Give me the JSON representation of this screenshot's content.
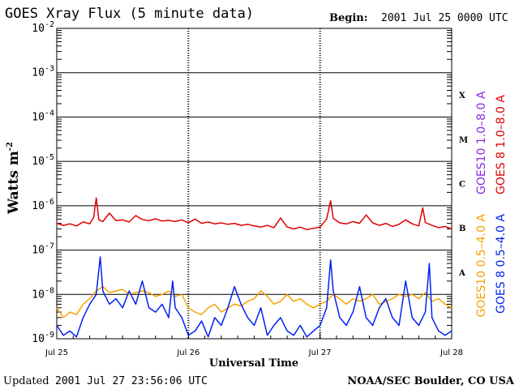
{
  "header": {
    "title": "GOES Xray Flux (5 minute data)",
    "begin_label": "Begin:",
    "begin_value": "2001 Jul 25 0000 UTC"
  },
  "footer": {
    "updated_label": "Updated",
    "updated_value": "2001 Jul 27 23:56:06 UTC",
    "credit": "NOAA/SEC Boulder, CO USA"
  },
  "chart_data": {
    "type": "line",
    "title": "GOES Xray Flux (5 minute data)",
    "xlabel": "Universal Time",
    "ylabel": "Watts m",
    "ylabel_superscript": "-2",
    "y_scale": "log",
    "ylim": [
      1e-09,
      0.01
    ],
    "y_ticks": [
      {
        "base": "10",
        "exp": "-2",
        "value": 0.01
      },
      {
        "base": "10",
        "exp": "-3",
        "value": 0.001
      },
      {
        "base": "10",
        "exp": "-4",
        "value": 0.0001
      },
      {
        "base": "10",
        "exp": "-5",
        "value": 1e-05
      },
      {
        "base": "10",
        "exp": "-6",
        "value": 1e-06
      },
      {
        "base": "10",
        "exp": "-7",
        "value": 1e-07
      },
      {
        "base": "10",
        "exp": "-8",
        "value": 1e-08
      },
      {
        "base": "10",
        "exp": "-9",
        "value": 1e-09
      }
    ],
    "x_ticks": [
      "Jul 25",
      "Jul 26",
      "Jul 27",
      "Jul 28"
    ],
    "x_range_days": [
      0,
      3
    ],
    "flare_classes": [
      {
        "label": "X",
        "value": 0.000316
      },
      {
        "label": "M",
        "value": 3.16e-05
      },
      {
        "label": "C",
        "value": 3.16e-06
      },
      {
        "label": "B",
        "value": 3.16e-07
      },
      {
        "label": "A",
        "value": 3.16e-08
      }
    ],
    "grid": "horizontal lines at each decade, dashed vertical lines at day boundaries",
    "legend": [
      {
        "label": "GOES10 1.0–8.0 A",
        "color": "#8a2be2"
      },
      {
        "label": "GOES 8 1.0–8.0 A",
        "color": "#dd0000"
      },
      {
        "label": "GOES10 0.5–4.0 A",
        "color": "#f5a300"
      },
      {
        "label": "GOES 8 0.5–4.0 A",
        "color": "#0022ee"
      }
    ],
    "series": [
      {
        "name": "GOES 8 1.0–8.0 A",
        "color": "#dd0000",
        "x": [
          0.0,
          0.05,
          0.1,
          0.15,
          0.2,
          0.25,
          0.28,
          0.3,
          0.32,
          0.35,
          0.4,
          0.45,
          0.5,
          0.55,
          0.6,
          0.65,
          0.7,
          0.75,
          0.8,
          0.85,
          0.9,
          0.95,
          1.0,
          1.05,
          1.1,
          1.15,
          1.2,
          1.25,
          1.3,
          1.35,
          1.4,
          1.45,
          1.5,
          1.55,
          1.6,
          1.65,
          1.7,
          1.75,
          1.8,
          1.85,
          1.9,
          1.95,
          2.0,
          2.05,
          2.08,
          2.1,
          2.15,
          2.2,
          2.25,
          2.3,
          2.35,
          2.4,
          2.45,
          2.5,
          2.55,
          2.6,
          2.65,
          2.7,
          2.75,
          2.78,
          2.8,
          2.85,
          2.9,
          2.95,
          3.0
        ],
        "y": [
          4e-07,
          3.6e-07,
          3.9e-07,
          3.5e-07,
          4.3e-07,
          3.9e-07,
          5.5e-07,
          1.5e-06,
          4.8e-07,
          4.4e-07,
          6.8e-07,
          4.6e-07,
          4.8e-07,
          4.3e-07,
          6e-07,
          4.9e-07,
          4.6e-07,
          5.1e-07,
          4.5e-07,
          4.7e-07,
          4.4e-07,
          4.8e-07,
          4.1e-07,
          5e-07,
          4e-07,
          4.3e-07,
          3.9e-07,
          4.1e-07,
          3.8e-07,
          4e-07,
          3.6e-07,
          3.8e-07,
          3.5e-07,
          3.3e-07,
          3.6e-07,
          3.2e-07,
          5.3e-07,
          3.3e-07,
          3e-07,
          3.3e-07,
          2.9e-07,
          3.1e-07,
          3.3e-07,
          5e-07,
          1.3e-06,
          5.2e-07,
          4.1e-07,
          3.9e-07,
          4.4e-07,
          4e-07,
          6.2e-07,
          4.1e-07,
          3.6e-07,
          4e-07,
          3.4e-07,
          3.8e-07,
          4.8e-07,
          3.9e-07,
          3.5e-07,
          9e-07,
          4.2e-07,
          3.6e-07,
          3.2e-07,
          3.4e-07,
          3e-07
        ]
      },
      {
        "name": "GOES10 0.5–4.0 A",
        "color": "#f5a300",
        "x": [
          0.0,
          0.05,
          0.1,
          0.15,
          0.2,
          0.25,
          0.3,
          0.35,
          0.4,
          0.45,
          0.5,
          0.55,
          0.6,
          0.65,
          0.7,
          0.75,
          0.8,
          0.85,
          0.9,
          0.95,
          1.0,
          1.05,
          1.1,
          1.15,
          1.2,
          1.25,
          1.3,
          1.35,
          1.4,
          1.45,
          1.5,
          1.55,
          1.6,
          1.65,
          1.7,
          1.75,
          1.8,
          1.85,
          1.9,
          1.95,
          2.0,
          2.05,
          2.1,
          2.15,
          2.2,
          2.25,
          2.3,
          2.35,
          2.4,
          2.45,
          2.5,
          2.55,
          2.6,
          2.65,
          2.7,
          2.75,
          2.8,
          2.85,
          2.9,
          2.95,
          3.0
        ],
        "y": [
          5e-09,
          3e-09,
          4e-09,
          3.5e-09,
          6e-09,
          8e-09,
          1.2e-08,
          1.5e-08,
          1.1e-08,
          1.2e-08,
          1.3e-08,
          1e-08,
          1.1e-08,
          1.2e-08,
          1.1e-08,
          9e-09,
          1e-08,
          1.2e-08,
          9e-09,
          1e-08,
          5e-09,
          4e-09,
          3.5e-09,
          5e-09,
          6e-09,
          4e-09,
          5e-09,
          6e-09,
          5.5e-09,
          7e-09,
          8e-09,
          1.2e-08,
          9e-09,
          6e-09,
          7e-09,
          1e-08,
          7e-09,
          8e-09,
          6e-09,
          5e-09,
          6e-09,
          7e-09,
          1e-08,
          8e-09,
          6e-09,
          8e-09,
          7e-09,
          8e-09,
          1e-08,
          6e-09,
          7e-09,
          8e-09,
          1e-08,
          9e-09,
          1e-08,
          8e-09,
          1.1e-08,
          7e-09,
          8e-09,
          6e-09,
          5e-09
        ]
      },
      {
        "name": "GOES 8 0.5–4.0 A",
        "color": "#0022ee",
        "x": [
          0.0,
          0.05,
          0.1,
          0.15,
          0.2,
          0.25,
          0.3,
          0.33,
          0.35,
          0.4,
          0.45,
          0.5,
          0.55,
          0.6,
          0.65,
          0.7,
          0.75,
          0.8,
          0.85,
          0.88,
          0.9,
          0.95,
          1.0,
          1.05,
          1.1,
          1.15,
          1.2,
          1.25,
          1.3,
          1.35,
          1.4,
          1.45,
          1.5,
          1.55,
          1.6,
          1.65,
          1.7,
          1.75,
          1.8,
          1.85,
          1.9,
          1.95,
          2.0,
          2.05,
          2.08,
          2.1,
          2.15,
          2.2,
          2.25,
          2.3,
          2.35,
          2.4,
          2.45,
          2.5,
          2.55,
          2.6,
          2.65,
          2.7,
          2.75,
          2.8,
          2.83,
          2.85,
          2.9,
          2.95,
          3.0
        ],
        "y": [
          2e-09,
          1.2e-09,
          1.5e-09,
          1.1e-09,
          3e-09,
          6e-09,
          1e-08,
          7e-08,
          1.2e-08,
          6e-09,
          8e-09,
          5e-09,
          1.2e-08,
          6e-09,
          2e-08,
          5e-09,
          4e-09,
          6e-09,
          3e-09,
          2e-08,
          5e-09,
          3e-09,
          1.2e-09,
          1.5e-09,
          2.5e-09,
          1.1e-09,
          3e-09,
          2e-09,
          5e-09,
          1.5e-08,
          6e-09,
          3e-09,
          2e-09,
          5e-09,
          1.2e-09,
          2e-09,
          3e-09,
          1.5e-09,
          1.2e-09,
          2e-09,
          1.1e-09,
          1.5e-09,
          2e-09,
          5e-09,
          6e-08,
          1.2e-08,
          3e-09,
          2e-09,
          4e-09,
          1.5e-08,
          3e-09,
          2e-09,
          5e-09,
          8e-09,
          3e-09,
          2e-09,
          2e-08,
          3e-09,
          2e-09,
          4e-09,
          5e-08,
          3e-09,
          1.5e-09,
          1.2e-09,
          1.5e-09
        ]
      }
    ]
  }
}
